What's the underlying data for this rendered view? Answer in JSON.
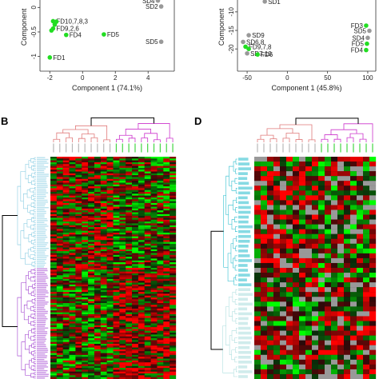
{
  "panels": {
    "B": "B",
    "D": "D"
  },
  "chart_data": [
    {
      "type": "scatter",
      "xlabel": "Component 1 (74.1%)",
      "ylabel": "Component",
      "xticks": [
        -2,
        0,
        2,
        4
      ],
      "yticks": [
        0,
        -0.5,
        -1
      ],
      "xlim": [
        -2.6,
        5.6
      ],
      "ylim": [
        -1.3,
        0.25
      ],
      "colors": {
        "FD": "#22dd22",
        "SD": "#999999"
      },
      "points": [
        {
          "label": "SD4",
          "group": "SD",
          "x": 4.6,
          "y": 0.14
        },
        {
          "label": "SD2",
          "group": "SD",
          "x": 4.8,
          "y": 0.02
        },
        {
          "label": "FD10,7,8,3",
          "group": "FD",
          "x": -1.8,
          "y": -0.28
        },
        {
          "label": "",
          "group": "FD",
          "x": -1.6,
          "y": -0.29
        },
        {
          "label": "",
          "group": "FD",
          "x": -1.7,
          "y": -0.35
        },
        {
          "label": "FD9,2,6",
          "group": "FD",
          "x": -1.8,
          "y": -0.43
        },
        {
          "label": "",
          "group": "FD",
          "x": -1.9,
          "y": -0.47
        },
        {
          "label": "FD4",
          "group": "FD",
          "x": -1.0,
          "y": -0.56
        },
        {
          "label": "FD5",
          "group": "FD",
          "x": 1.3,
          "y": -0.55
        },
        {
          "label": "SD5",
          "group": "SD",
          "x": 4.8,
          "y": -0.7
        },
        {
          "label": "FD1",
          "group": "FD",
          "x": -2.0,
          "y": -1.02
        }
      ]
    },
    {
      "type": "scatter",
      "xlabel": "Component 1 (45.8%)",
      "ylabel": "Component",
      "xticks": [
        -50,
        0,
        50,
        100
      ],
      "yticks": [
        -10,
        -15,
        -20
      ],
      "xlim": [
        -62,
        110
      ],
      "ylim": [
        -26,
        -5.5
      ],
      "colors": {
        "FD": "#22dd22",
        "SD": "#999999"
      },
      "points": [
        {
          "label": "SD1",
          "group": "SD",
          "x": -28,
          "y": -7.2
        },
        {
          "label": "FD3",
          "group": "FD",
          "x": 98,
          "y": -13.7
        },
        {
          "label": "SD5",
          "group": "SD",
          "x": 102,
          "y": -15.1
        },
        {
          "label": "SD9",
          "group": "SD",
          "x": -48,
          "y": -16.3
        },
        {
          "label": "SD4",
          "group": "SD",
          "x": 100,
          "y": -17.0
        },
        {
          "label": "SD6,8",
          "group": "SD",
          "x": -55,
          "y": -18.1
        },
        {
          "label": "FD5",
          "group": "FD",
          "x": 99,
          "y": -18.6
        },
        {
          "label": "FD9,7,8",
          "group": "FD",
          "x": -52,
          "y": -19.4
        },
        {
          "label": "",
          "group": "FD",
          "x": -48,
          "y": -20.0
        },
        {
          "label": "FD4",
          "group": "FD",
          "x": 98,
          "y": -20.3
        },
        {
          "label": "SD7,10",
          "group": "SD",
          "x": -50,
          "y": -21.2
        },
        {
          "label": "FD6",
          "group": "FD",
          "x": -37,
          "y": -21.5
        }
      ]
    },
    {
      "type": "heatmap",
      "panel": "B",
      "column_groups": [
        {
          "group": "SD",
          "count": 10,
          "tree_color": "#e07a7a",
          "label_color": "#aaaaaa"
        },
        {
          "group": "FD",
          "count": 10,
          "tree_color": "#cc33cc",
          "label_color": "#22cc22"
        }
      ],
      "row_groups": [
        {
          "count": 60,
          "tree_color": "#7ec8e0"
        },
        {
          "count": 60,
          "tree_color": "#9933cc"
        }
      ],
      "palette": {
        "low": "#22ff22",
        "mid": "#000000",
        "high": "#ff1111"
      },
      "seed": 7
    },
    {
      "type": "heatmap",
      "panel": "D",
      "column_groups": [
        {
          "group": "SD",
          "count": 10,
          "tree_color": "#e07a7a",
          "label_color": "#aaaaaa"
        },
        {
          "group": "FD",
          "count": 9,
          "tree_color": "#cc33cc",
          "label_color": "#22cc22"
        }
      ],
      "row_groups": [
        {
          "count": 27,
          "tree_color": "#22bbcc"
        },
        {
          "count": 19,
          "tree_color": "#aadddd"
        }
      ],
      "palette": {
        "low": "#22ff22",
        "mid": "#000000",
        "high": "#ff1111",
        "missing": "#999999"
      },
      "seed": 13
    }
  ]
}
